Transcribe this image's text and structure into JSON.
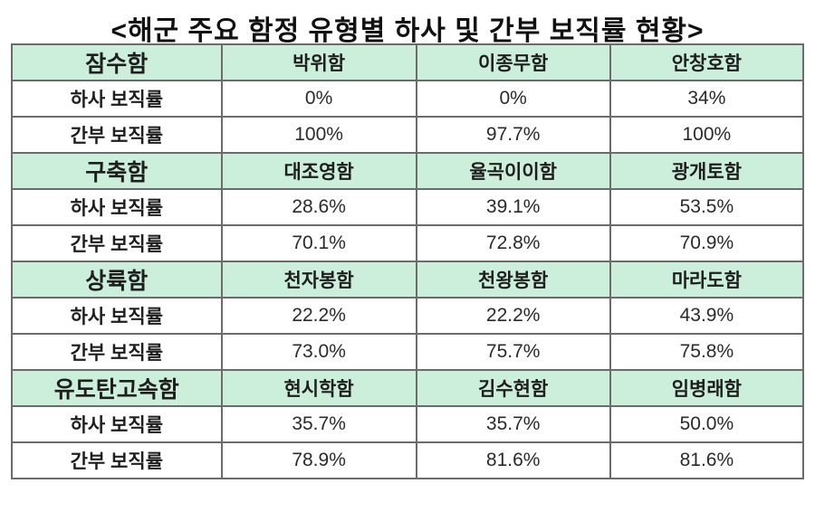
{
  "title": "<해군 주요 함정 유형별 하사 및 간부 보직률 현황>",
  "colors": {
    "header_bg": "#ccefdc",
    "border": "#6b6b6b",
    "text": "#1e1e1e",
    "page_bg": "#ffffff"
  },
  "chart_data": {
    "type": "table",
    "title": "해군 주요 함정 유형별 하사 및 간부 보직률 현황",
    "layout": {
      "rows": 12,
      "columns": 4,
      "section_header_background": "#ccefdc",
      "grid_border_color": "#6b6b6b"
    },
    "sections": [
      {
        "category": "잠수함",
        "ships": [
          "박위함",
          "이종무함",
          "안창호함"
        ],
        "rows": [
          {
            "label": "하사 보직률",
            "values": [
              "0%",
              "0%",
              "34%"
            ]
          },
          {
            "label": "간부 보직률",
            "values": [
              "100%",
              "97.7%",
              "100%"
            ]
          }
        ]
      },
      {
        "category": "구축함",
        "ships": [
          "대조영함",
          "율곡이이함",
          "광개토함"
        ],
        "rows": [
          {
            "label": "하사 보직률",
            "values": [
              "28.6%",
              "39.1%",
              "53.5%"
            ]
          },
          {
            "label": "간부 보직률",
            "values": [
              "70.1%",
              "72.8%",
              "70.9%"
            ]
          }
        ]
      },
      {
        "category": "상륙함",
        "ships": [
          "천자봉함",
          "천왕봉함",
          "마라도함"
        ],
        "rows": [
          {
            "label": "하사 보직률",
            "values": [
              "22.2%",
              "22.2%",
              "43.9%"
            ]
          },
          {
            "label": "간부 보직률",
            "values": [
              "73.0%",
              "75.7%",
              "75.8%"
            ]
          }
        ]
      },
      {
        "category": "유도탄고속함",
        "ships": [
          "현시학함",
          "김수현함",
          "임병래함"
        ],
        "rows": [
          {
            "label": "하사 보직률",
            "values": [
              "35.7%",
              "35.7%",
              "50.0%"
            ]
          },
          {
            "label": "간부 보직률",
            "values": [
              "78.9%",
              "81.6%",
              "81.6%"
            ]
          }
        ]
      }
    ]
  }
}
